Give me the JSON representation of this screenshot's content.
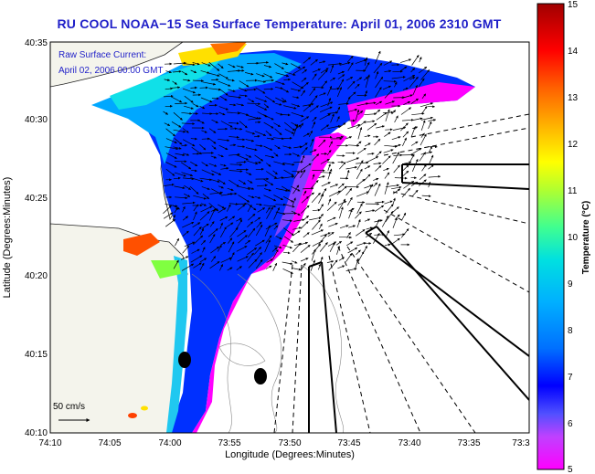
{
  "title": "RU COOL  NOAA−15  Sea Surface Temperature:  April 01, 2006 2310 GMT",
  "overlay": {
    "line1": "Raw Surface Current:",
    "line2": "April 02, 2006 00:00 GMT"
  },
  "scale_arrow_label": "50 cm/s",
  "axes": {
    "xlabel": "Longitude (Degrees:Minutes)",
    "ylabel": "Latitude (Degrees:Minutes)",
    "x_ticks": [
      "74:10",
      "74:05",
      "74:00",
      "73:55",
      "73:50",
      "73:45",
      "73:40",
      "73:35",
      "73:3"
    ],
    "y_ticks": [
      "40:35",
      "40:30",
      "40:25",
      "40:20",
      "40:15",
      "40:10"
    ]
  },
  "colorbar": {
    "label": "Temperature (°C)",
    "min": 5,
    "max": 15,
    "ticks": [
      "15",
      "14",
      "13",
      "12",
      "11",
      "10",
      "9",
      "8",
      "7",
      "6",
      "5"
    ],
    "colors": [
      "#ff00ff",
      "#c040ff",
      "#5050ff",
      "#0000ff",
      "#0070ff",
      "#00b0ff",
      "#00e0e0",
      "#40ff90",
      "#b0ff30",
      "#ffff00",
      "#ffb000",
      "#ff6000",
      "#ff0000",
      "#a00000"
    ]
  },
  "colors": {
    "title": "#1f1fc8",
    "land": "#f4f4ec",
    "water_background": "#ffffff",
    "cloud": "#ffffff"
  }
}
